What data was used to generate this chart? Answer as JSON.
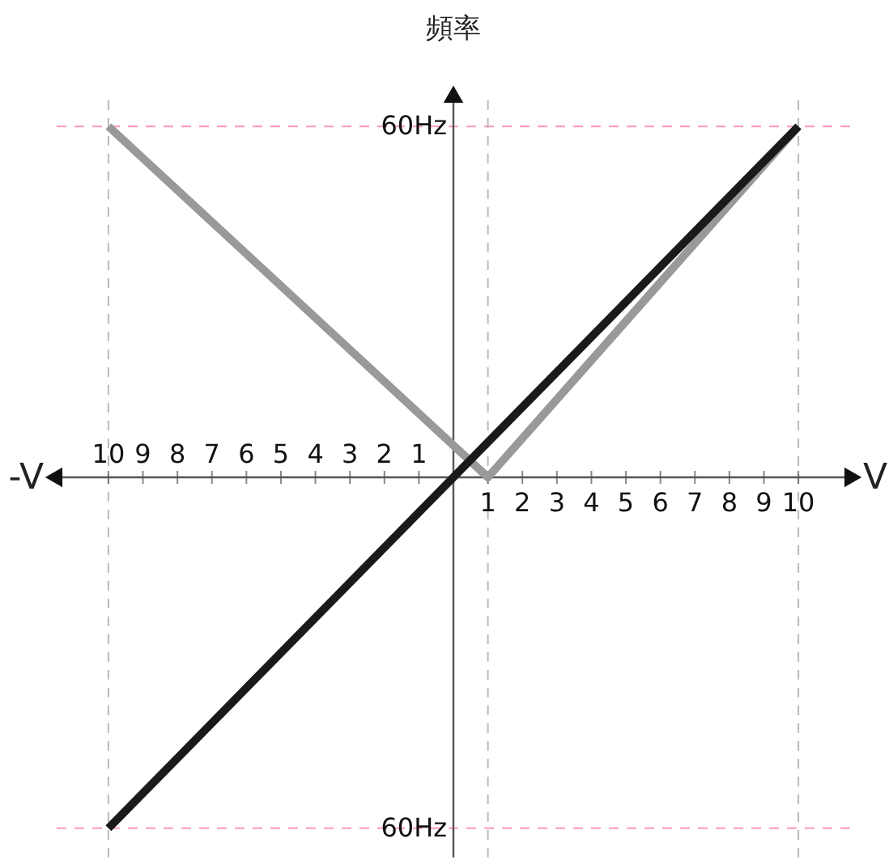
{
  "chart_data": {
    "type": "line",
    "ylabel": "頻率",
    "xlabel": "V",
    "annotations": [
      "-V"
    ],
    "xlim": [
      -11.5,
      11.5
    ],
    "ylim": [
      -65,
      65
    ],
    "x2lim": [
      11.5,
      -11.5
    ],
    "x2ticks": [
      10,
      9,
      8,
      7,
      6,
      5,
      4,
      3,
      2,
      1
    ],
    "xticks": [
      1,
      2,
      3,
      4,
      5,
      6,
      7,
      8,
      9,
      10
    ],
    "yticks": [
      {
        "value": 60,
        "label": "60Hz"
      },
      {
        "value": -60,
        "label": "60Hz"
      }
    ],
    "ref_lines": [
      {
        "axis": "y",
        "value": 60,
        "color": "#ff99bb",
        "line_style": "dashed"
      },
      {
        "axis": "y",
        "value": -60,
        "color": "#ff99bb",
        "line_style": "dashed"
      },
      {
        "axis": "x",
        "value": -10,
        "color": "#bbbbbb",
        "line_style": "dashed"
      },
      {
        "axis": "x",
        "value": 1,
        "color": "#bbbbbb",
        "line_style": "dashed"
      },
      {
        "axis": "x",
        "value": 10,
        "color": "#bbbbbb",
        "line_style": "dashed"
      }
    ],
    "line_style": "solid",
    "marker": "none",
    "series": [
      {
        "color": "#999999",
        "x": [
          -10,
          1,
          10
        ],
        "values": [
          60,
          0,
          60
        ]
      },
      {
        "color": "#1a1a1a",
        "x": [
          -10,
          10
        ],
        "values": [
          -60,
          60
        ]
      }
    ]
  }
}
